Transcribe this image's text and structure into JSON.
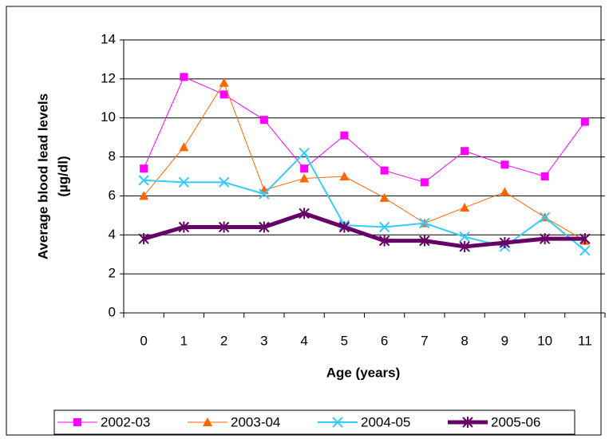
{
  "chart_data": {
    "type": "line",
    "x_label": "Age (years)",
    "y_label": [
      "Average blood lead levels",
      "(µg/dl)"
    ],
    "categories": [
      "0",
      "1",
      "2",
      "3",
      "4",
      "5",
      "6",
      "7",
      "8",
      "9",
      "10",
      "11"
    ],
    "ylim": [
      0,
      14
    ],
    "yticks": [
      0,
      2,
      4,
      6,
      8,
      10,
      12,
      14
    ],
    "grid": true,
    "legend": "bottom",
    "series": [
      {
        "name": "2002-03",
        "color": "#ff00ff",
        "marker": "square",
        "line_width": 1,
        "values": [
          7.4,
          12.1,
          11.2,
          9.9,
          7.4,
          9.1,
          7.3,
          6.7,
          8.3,
          7.6,
          7.0,
          9.8
        ]
      },
      {
        "name": "2003-04",
        "color": "#ff6600",
        "marker": "triangle",
        "line_width": 1,
        "values": [
          6.0,
          8.5,
          11.8,
          6.3,
          6.9,
          7.0,
          5.9,
          4.6,
          5.4,
          6.2,
          4.9,
          3.7
        ]
      },
      {
        "name": "2004-05",
        "color": "#33ccff",
        "marker": "x",
        "line_width": 2,
        "values": [
          6.8,
          6.7,
          6.7,
          6.1,
          8.2,
          4.5,
          4.4,
          4.6,
          3.9,
          3.4,
          4.9,
          3.2
        ]
      },
      {
        "name": "2005-06",
        "color": "#660066",
        "marker": "star",
        "line_width": 5,
        "values": [
          3.8,
          4.4,
          4.4,
          4.4,
          5.1,
          4.4,
          3.7,
          3.7,
          3.4,
          3.6,
          3.8,
          3.8
        ]
      }
    ]
  }
}
